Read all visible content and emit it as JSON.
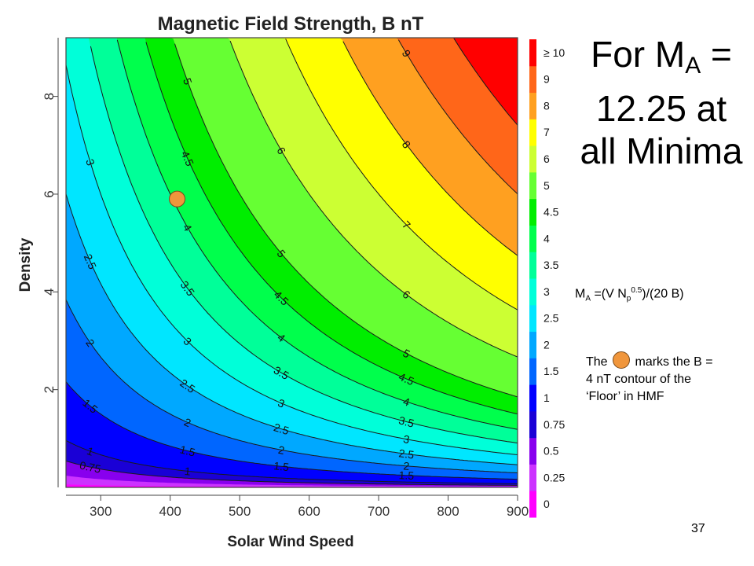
{
  "chart_data": {
    "type": "contour",
    "title": "Magnetic Field Strength, B nT",
    "xlabel": "Solar Wind Speed",
    "ylabel": "Density",
    "xlim": [
      250,
      900
    ],
    "ylim": [
      0,
      9.2
    ],
    "x_ticks": [
      300,
      400,
      500,
      600,
      700,
      800,
      900
    ],
    "y_ticks": [
      2,
      4,
      6,
      8
    ],
    "formula": "B = V * N^0.5 / (20 * 12.25)",
    "contour_levels": [
      0.25,
      0.5,
      0.75,
      1,
      1.5,
      2,
      2.5,
      3,
      3.5,
      4,
      4.5,
      5,
      6,
      7,
      8,
      9,
      10
    ],
    "colorbar": [
      {
        "label": "0",
        "color": "#ff00ff"
      },
      {
        "label": "0.25",
        "color": "#cc33ff"
      },
      {
        "label": "0.5",
        "color": "#8800ee"
      },
      {
        "label": "0.75",
        "color": "#1a00d6"
      },
      {
        "label": "1",
        "color": "#0000ff"
      },
      {
        "label": "1.5",
        "color": "#0066ff"
      },
      {
        "label": "2",
        "color": "#00a8ff"
      },
      {
        "label": "2.5",
        "color": "#00e6ff"
      },
      {
        "label": "3",
        "color": "#00ffd9"
      },
      {
        "label": "3.5",
        "color": "#00ff99"
      },
      {
        "label": "4",
        "color": "#00ff4c"
      },
      {
        "label": "4.5",
        "color": "#00ee00"
      },
      {
        "label": "5",
        "color": "#66ff33"
      },
      {
        "label": "6",
        "color": "#ccff33"
      },
      {
        "label": "7",
        "color": "#ffff00"
      },
      {
        "label": "8",
        "color": "#ffa020"
      },
      {
        "label": "9",
        "color": "#ff6619"
      },
      {
        "label": "≥ 10",
        "color": "#ff0000"
      }
    ],
    "marker": {
      "x": 410,
      "y": 5.9,
      "color": "#f0963c"
    }
  },
  "annotations": {
    "title_for": "For M",
    "title_sub": "A",
    "title_rest": "= 12.25 at all Minima",
    "formula_m": "M",
    "formula_a": "A",
    "formula_mid": " =(V N",
    "formula_p": "p",
    "formula_exp": "0.5",
    "formula_end": ")/(20 B)",
    "note_1": "The",
    "note_2": "marks the B = 4 nT contour of the ‘Floor’ in HMF"
  },
  "page_number": "37"
}
